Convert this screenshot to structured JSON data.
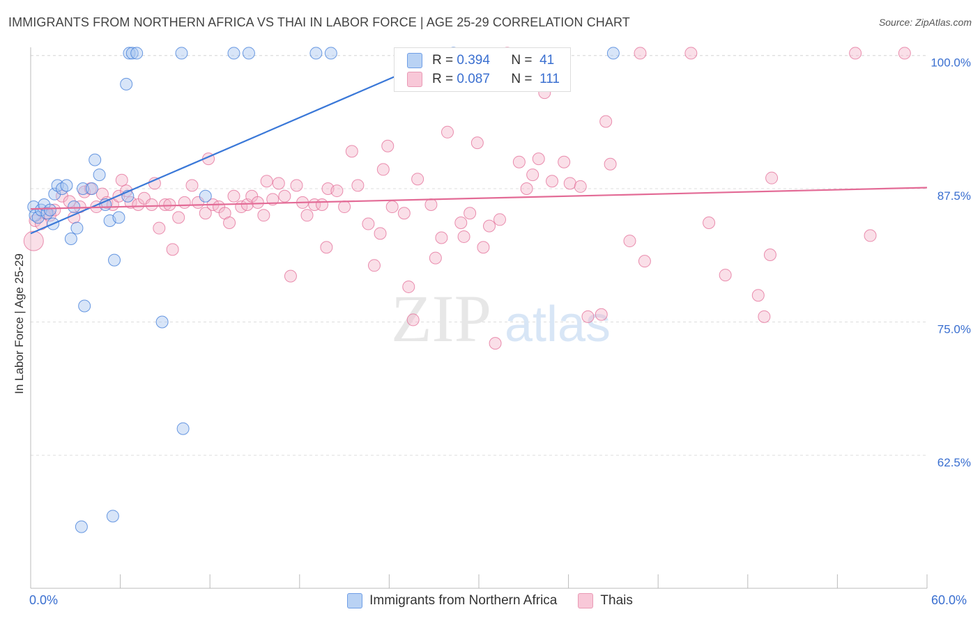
{
  "title": "IMMIGRANTS FROM NORTHERN AFRICA VS THAI IN LABOR FORCE | AGE 25-29 CORRELATION CHART",
  "source": "Source: ZipAtlas.com",
  "watermark": {
    "zip": "ZIP",
    "atlas": "atlas"
  },
  "colors": {
    "blue": "#3a78d8",
    "blue_fill": "#a9c6f0",
    "pink": "#e36b96",
    "pink_fill": "#f5b8cc",
    "tick_text": "#3a6fd0"
  },
  "legend": {
    "r_label": "R =",
    "n_label": "N =",
    "blue": {
      "r": "0.394",
      "n": "41"
    },
    "pink": {
      "r": "0.087",
      "n": "111"
    }
  },
  "bottom_legend": {
    "blue_label": "Immigrants from Northern Africa",
    "pink_label": "Thais"
  },
  "chart_data": {
    "type": "scatter",
    "title": "IMMIGRANTS FROM NORTHERN AFRICA VS THAI IN LABOR FORCE | AGE 25-29 CORRELATION CHART",
    "xlabel": "",
    "ylabel": "In Labor Force | Age 25-29",
    "xlim": [
      0,
      60
    ],
    "ylim": [
      50,
      101.5
    ],
    "x_tick_labels": [
      "0.0%",
      "60.0%"
    ],
    "y_ticks": [
      62.5,
      75.0,
      87.5,
      100.0
    ],
    "y_tick_labels": [
      "62.5%",
      "75.0%",
      "87.5%",
      "100.0%"
    ],
    "grid": "horizontal dashed",
    "legend_position": "top-center",
    "series": [
      {
        "name": "Immigrants from Northern Africa",
        "color": "#3a78d8",
        "trend": {
          "x": [
            0.0,
            28.5
          ],
          "y": [
            83.3,
            100.5
          ]
        },
        "points": [
          [
            0.2,
            85.8
          ],
          [
            0.3,
            85.0
          ],
          [
            0.5,
            84.8
          ],
          [
            0.7,
            85.5
          ],
          [
            0.9,
            86.0
          ],
          [
            1.1,
            85.2
          ],
          [
            1.3,
            85.5
          ],
          [
            1.5,
            84.2
          ],
          [
            1.6,
            87.0
          ],
          [
            1.8,
            87.8
          ],
          [
            2.1,
            87.5
          ],
          [
            2.4,
            87.8
          ],
          [
            2.7,
            82.8
          ],
          [
            2.9,
            85.8
          ],
          [
            3.1,
            83.8
          ],
          [
            3.5,
            87.5
          ],
          [
            3.6,
            76.5
          ],
          [
            3.4,
            55.8
          ],
          [
            4.1,
            87.5
          ],
          [
            4.3,
            90.2
          ],
          [
            4.6,
            88.8
          ],
          [
            5.0,
            86.0
          ],
          [
            5.3,
            84.5
          ],
          [
            5.5,
            56.8
          ],
          [
            5.6,
            80.8
          ],
          [
            5.9,
            84.8
          ],
          [
            6.4,
            97.3
          ],
          [
            6.5,
            86.8
          ],
          [
            6.6,
            100.2
          ],
          [
            6.8,
            100.2
          ],
          [
            7.1,
            100.2
          ],
          [
            8.8,
            75.0
          ],
          [
            10.1,
            100.2
          ],
          [
            10.2,
            65.0
          ],
          [
            11.7,
            86.8
          ],
          [
            13.6,
            100.2
          ],
          [
            14.6,
            100.2
          ],
          [
            19.1,
            100.2
          ],
          [
            20.1,
            100.2
          ],
          [
            28.3,
            100.2
          ],
          [
            39.0,
            100.2
          ]
        ]
      },
      {
        "name": "Thais",
        "color": "#e36b96",
        "trend": {
          "x": [
            0.0,
            60.0
          ],
          "y": [
            85.6,
            87.6
          ]
        },
        "points": [
          [
            0.2,
            82.6
          ],
          [
            0.3,
            84.5
          ],
          [
            0.7,
            84.2
          ],
          [
            1.0,
            85.2
          ],
          [
            1.3,
            85.0
          ],
          [
            1.6,
            85.5
          ],
          [
            2.1,
            86.8
          ],
          [
            2.6,
            86.3
          ],
          [
            2.9,
            84.8
          ],
          [
            3.3,
            85.8
          ],
          [
            3.6,
            87.2
          ],
          [
            4.0,
            87.5
          ],
          [
            4.4,
            85.8
          ],
          [
            4.8,
            87.0
          ],
          [
            5.1,
            86.2
          ],
          [
            5.5,
            86.0
          ],
          [
            5.9,
            86.8
          ],
          [
            6.1,
            88.3
          ],
          [
            6.4,
            87.3
          ],
          [
            6.7,
            86.2
          ],
          [
            7.2,
            86.0
          ],
          [
            7.6,
            86.6
          ],
          [
            8.1,
            86.0
          ],
          [
            8.3,
            88.0
          ],
          [
            8.6,
            83.8
          ],
          [
            9.0,
            86.0
          ],
          [
            9.3,
            86.0
          ],
          [
            9.5,
            81.8
          ],
          [
            9.9,
            84.8
          ],
          [
            10.3,
            86.2
          ],
          [
            10.8,
            87.8
          ],
          [
            11.2,
            86.2
          ],
          [
            11.7,
            85.2
          ],
          [
            11.9,
            90.3
          ],
          [
            12.2,
            86.0
          ],
          [
            12.6,
            85.8
          ],
          [
            13.0,
            85.2
          ],
          [
            13.3,
            84.3
          ],
          [
            13.6,
            86.8
          ],
          [
            14.1,
            85.8
          ],
          [
            14.5,
            86.0
          ],
          [
            14.8,
            86.8
          ],
          [
            15.2,
            86.2
          ],
          [
            15.6,
            85.0
          ],
          [
            15.8,
            88.2
          ],
          [
            16.2,
            86.5
          ],
          [
            16.6,
            88.0
          ],
          [
            17.0,
            86.8
          ],
          [
            17.4,
            79.3
          ],
          [
            17.8,
            87.8
          ],
          [
            18.2,
            86.2
          ],
          [
            18.5,
            85.0
          ],
          [
            19.0,
            86.0
          ],
          [
            19.5,
            86.0
          ],
          [
            19.8,
            82.0
          ],
          [
            19.9,
            87.5
          ],
          [
            20.5,
            87.3
          ],
          [
            21.0,
            85.8
          ],
          [
            21.5,
            91.0
          ],
          [
            21.9,
            87.8
          ],
          [
            22.6,
            84.2
          ],
          [
            23.0,
            80.3
          ],
          [
            23.4,
            83.3
          ],
          [
            23.6,
            89.3
          ],
          [
            23.9,
            91.5
          ],
          [
            24.2,
            85.8
          ],
          [
            25.0,
            85.2
          ],
          [
            25.3,
            78.3
          ],
          [
            25.6,
            75.2
          ],
          [
            25.9,
            88.4
          ],
          [
            26.8,
            86.0
          ],
          [
            27.1,
            81.0
          ],
          [
            27.5,
            82.9
          ],
          [
            27.9,
            92.8
          ],
          [
            28.8,
            84.3
          ],
          [
            29.0,
            83.0
          ],
          [
            29.4,
            85.2
          ],
          [
            29.9,
            91.8
          ],
          [
            30.3,
            82.0
          ],
          [
            30.7,
            84.0
          ],
          [
            31.1,
            73.0
          ],
          [
            31.4,
            84.6
          ],
          [
            31.9,
            100.2
          ],
          [
            32.7,
            90.0
          ],
          [
            33.2,
            87.5
          ],
          [
            33.6,
            88.8
          ],
          [
            34.0,
            90.3
          ],
          [
            34.4,
            96.5
          ],
          [
            34.9,
            88.2
          ],
          [
            35.7,
            90.0
          ],
          [
            36.1,
            88.0
          ],
          [
            36.8,
            87.7
          ],
          [
            37.3,
            75.5
          ],
          [
            38.2,
            75.7
          ],
          [
            38.5,
            93.8
          ],
          [
            38.8,
            89.8
          ],
          [
            40.1,
            82.6
          ],
          [
            40.8,
            100.2
          ],
          [
            41.1,
            80.7
          ],
          [
            44.2,
            100.2
          ],
          [
            45.4,
            84.3
          ],
          [
            46.5,
            79.4
          ],
          [
            48.7,
            77.5
          ],
          [
            49.1,
            75.5
          ],
          [
            49.5,
            81.3
          ],
          [
            49.6,
            88.5
          ],
          [
            55.2,
            100.2
          ],
          [
            56.2,
            83.1
          ],
          [
            58.5,
            100.2
          ]
        ]
      }
    ]
  }
}
